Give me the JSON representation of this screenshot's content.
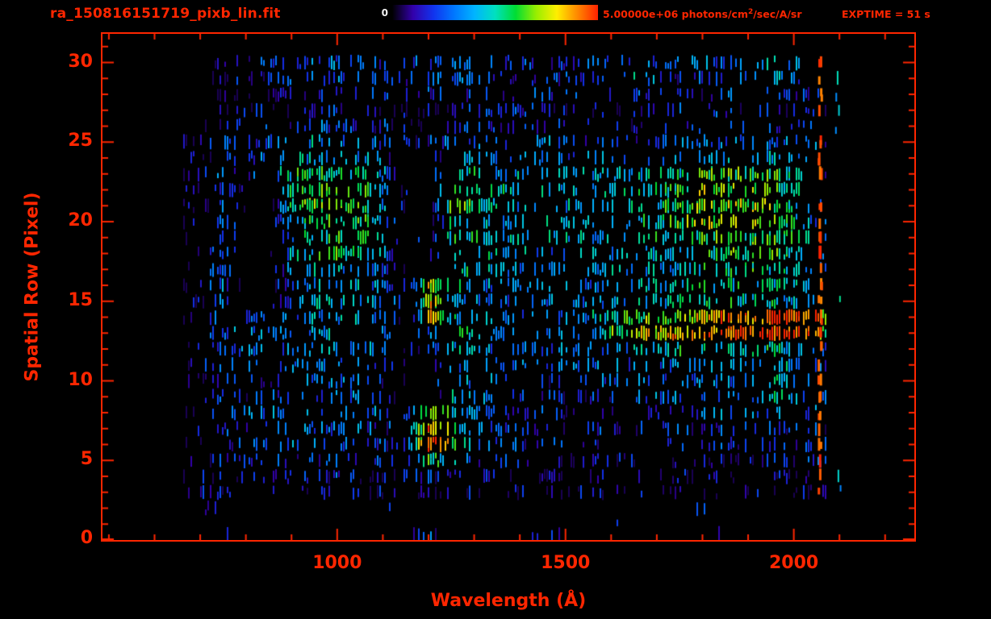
{
  "colors": {
    "accent": "#ff2600",
    "background": "#000000",
    "colorbar_min_text": "#f2f2f2"
  },
  "header": {
    "filename": "ra_150816151719_pixb_lin.fit",
    "colorbar_min_label": "0",
    "flux_prefix": "5.00000e+06 photons/cm",
    "flux_sup": "2",
    "flux_suffix": "/sec/A/sr",
    "exptime_label": "EXPTIME = 51 s"
  },
  "chart_data": {
    "type": "heatmap",
    "title": "ra_150816151719_pixb_lin.fit",
    "xlabel": "Wavelength (Å)",
    "ylabel": "Spatial Row (Pixel)",
    "xlim": [
      486,
      2264
    ],
    "ylim": [
      0,
      31.8
    ],
    "x_major_ticks": [
      1000,
      1500,
      2000
    ],
    "x_minor_step": 100,
    "y_major_ticks": [
      0,
      5,
      10,
      15,
      20,
      25,
      30
    ],
    "y_minor_step": 1,
    "colorbar": {
      "min": 0,
      "max": 5000000,
      "label": "photons/cm²/sec/A/sr"
    },
    "exposure_time_s": 51,
    "wavelength_bins_start": 650,
    "wavelength_bin_step": 50,
    "intensity_scale_max": 10,
    "colormap_stops": [
      "#000000",
      "#3300aa",
      "#1133ee",
      "#0077ff",
      "#00b4ff",
      "#00e0c0",
      "#00dd33",
      "#99ee00",
      "#ffee00",
      "#ff8800",
      "#ff2200"
    ],
    "noise_seed": 42,
    "features": {
      "red_edge_column_wavelength": 2057,
      "bright_streak_row": 13.5,
      "bright_blob": {
        "wavelength": 1210,
        "rows": [
          5,
          8
        ]
      },
      "dark_gap_wavelength_range": [
        1150,
        1220
      ]
    },
    "intensity_grid": [
      [
        0,
        0,
        0,
        0,
        0,
        0,
        0,
        0,
        0,
        0,
        0,
        3,
        0,
        0,
        0,
        0,
        2,
        0,
        0,
        0,
        0,
        0,
        0,
        0,
        0,
        0,
        0,
        0,
        0,
        0,
        0,
        0
      ],
      [
        0,
        0,
        0,
        0,
        0,
        0,
        0,
        0,
        0,
        0,
        0,
        0,
        0,
        0,
        0,
        0,
        0,
        0,
        0,
        0,
        0,
        0,
        0,
        0,
        0,
        0,
        0,
        0,
        0,
        0,
        0,
        0
      ],
      [
        0,
        0,
        0,
        0,
        0,
        0,
        0,
        0,
        0,
        0,
        0,
        0,
        0,
        0,
        0,
        0,
        0,
        0,
        0,
        0,
        0,
        0,
        0,
        0,
        0,
        0,
        0,
        0,
        0,
        0,
        0,
        0
      ],
      [
        0,
        1,
        1,
        1,
        1,
        1,
        1,
        1,
        1,
        1,
        1,
        1,
        1,
        1,
        1,
        1,
        1,
        1,
        1,
        1,
        1,
        1,
        1,
        1,
        1,
        1,
        1,
        1,
        2,
        0,
        0,
        0
      ],
      [
        0,
        1,
        1,
        1,
        2,
        2,
        2,
        2,
        1,
        1,
        1,
        2,
        1,
        1,
        1,
        1,
        1,
        1,
        1,
        1,
        1,
        1,
        1,
        1,
        1,
        1,
        1,
        1,
        2,
        0,
        0,
        0
      ],
      [
        0,
        1,
        2,
        2,
        2,
        2,
        2,
        2,
        2,
        2,
        2,
        6,
        4,
        2,
        2,
        1,
        1,
        1,
        1,
        1,
        1,
        1,
        1,
        1,
        1,
        1,
        2,
        2,
        3,
        0,
        0,
        0
      ],
      [
        0,
        1,
        2,
        2,
        2,
        3,
        3,
        3,
        3,
        2,
        2,
        10,
        7,
        3,
        2,
        2,
        2,
        2,
        2,
        2,
        2,
        2,
        2,
        2,
        2,
        2,
        2,
        2,
        3,
        0,
        0,
        0
      ],
      [
        0,
        1,
        2,
        2,
        2,
        3,
        3,
        3,
        3,
        2,
        2,
        9,
        6,
        3,
        2,
        2,
        2,
        2,
        2,
        2,
        2,
        2,
        2,
        2,
        2,
        2,
        2,
        2,
        3,
        0,
        0,
        0
      ],
      [
        0,
        1,
        2,
        3,
        3,
        3,
        3,
        3,
        3,
        3,
        2,
        7,
        5,
        3,
        3,
        2,
        2,
        2,
        2,
        2,
        2,
        2,
        2,
        3,
        3,
        3,
        3,
        3,
        3,
        0,
        0,
        0
      ],
      [
        0,
        1,
        2,
        2,
        2,
        2,
        3,
        3,
        3,
        2,
        0,
        0,
        4,
        4,
        3,
        2,
        2,
        2,
        2,
        2,
        3,
        3,
        3,
        3,
        3,
        3,
        5,
        4,
        3,
        0,
        0,
        0
      ],
      [
        0,
        1,
        2,
        2,
        2,
        3,
        3,
        3,
        3,
        2,
        0,
        0,
        4,
        3,
        3,
        2,
        2,
        2,
        2,
        3,
        3,
        3,
        3,
        3,
        3,
        4,
        5,
        4,
        3,
        0,
        0,
        0
      ],
      [
        0,
        1,
        2,
        3,
        3,
        3,
        3,
        3,
        3,
        3,
        0,
        0,
        4,
        3,
        3,
        3,
        3,
        3,
        3,
        3,
        3,
        3,
        3,
        3,
        4,
        4,
        5,
        4,
        3,
        0,
        0,
        0
      ],
      [
        0,
        1,
        2,
        3,
        3,
        3,
        4,
        4,
        4,
        3,
        0,
        2,
        4,
        4,
        3,
        3,
        3,
        3,
        3,
        3,
        4,
        5,
        5,
        5,
        5,
        5,
        5,
        4,
        3,
        0,
        0,
        0
      ],
      [
        0,
        1,
        3,
        3,
        3,
        3,
        4,
        4,
        4,
        3,
        0,
        3,
        5,
        5,
        4,
        3,
        3,
        3,
        4,
        6,
        7,
        8,
        8,
        9,
        9,
        10,
        10,
        10,
        10,
        0,
        0,
        0
      ],
      [
        0,
        1,
        3,
        3,
        3,
        3,
        4,
        4,
        4,
        3,
        0,
        8,
        5,
        4,
        4,
        3,
        3,
        3,
        4,
        5,
        6,
        7,
        7,
        8,
        9,
        9,
        10,
        10,
        10,
        0,
        0,
        0
      ],
      [
        0,
        1,
        3,
        0,
        0,
        3,
        4,
        4,
        4,
        3,
        2,
        8,
        4,
        4,
        3,
        3,
        3,
        3,
        3,
        4,
        4,
        4,
        5,
        5,
        5,
        5,
        5,
        4,
        3,
        0,
        0,
        0
      ],
      [
        0,
        1,
        3,
        0,
        0,
        3,
        4,
        4,
        4,
        3,
        0,
        8,
        5,
        4,
        3,
        3,
        3,
        3,
        3,
        4,
        4,
        4,
        4,
        5,
        5,
        5,
        5,
        4,
        3,
        0,
        0,
        0
      ],
      [
        0,
        1,
        3,
        0,
        0,
        4,
        4,
        4,
        4,
        3,
        0,
        0,
        5,
        5,
        4,
        3,
        3,
        3,
        3,
        4,
        4,
        4,
        4,
        5,
        5,
        6,
        5,
        4,
        3,
        0,
        0,
        0
      ],
      [
        0,
        1,
        3,
        0,
        0,
        4,
        5,
        6,
        5,
        4,
        0,
        0,
        5,
        5,
        4,
        4,
        3,
        3,
        4,
        4,
        4,
        4,
        5,
        5,
        6,
        6,
        6,
        5,
        3,
        0,
        0,
        0
      ],
      [
        0,
        1,
        3,
        0,
        0,
        4,
        5,
        6,
        6,
        4,
        0,
        0,
        5,
        5,
        4,
        4,
        4,
        4,
        4,
        4,
        4,
        5,
        5,
        6,
        6,
        6,
        6,
        5,
        3,
        0,
        0,
        0
      ],
      [
        0,
        1,
        3,
        0,
        0,
        4,
        6,
        6,
        6,
        4,
        0,
        0,
        5,
        5,
        4,
        4,
        4,
        4,
        4,
        4,
        5,
        5,
        6,
        7,
        7,
        7,
        7,
        5,
        3,
        0,
        0,
        0
      ],
      [
        0,
        1,
        3,
        0,
        0,
        6,
        7,
        7,
        6,
        4,
        0,
        0,
        6,
        6,
        4,
        4,
        4,
        4,
        4,
        4,
        5,
        5,
        6,
        7,
        7,
        7,
        7,
        5,
        3,
        0,
        0,
        0
      ],
      [
        0,
        1,
        3,
        0,
        0,
        6,
        7,
        6,
        6,
        4,
        0,
        0,
        6,
        6,
        5,
        4,
        4,
        4,
        4,
        4,
        5,
        5,
        6,
        7,
        7,
        7,
        6,
        5,
        3,
        0,
        0,
        0
      ],
      [
        0,
        1,
        3,
        2,
        3,
        5,
        6,
        5,
        5,
        4,
        0,
        0,
        5,
        5,
        4,
        4,
        4,
        4,
        4,
        4,
        4,
        5,
        5,
        6,
        6,
        6,
        6,
        5,
        3,
        0,
        0,
        0
      ],
      [
        0,
        1,
        2,
        2,
        4,
        4,
        4,
        4,
        4,
        3,
        0,
        0,
        4,
        4,
        3,
        3,
        3,
        3,
        3,
        3,
        3,
        3,
        4,
        4,
        4,
        4,
        4,
        4,
        3,
        0,
        0,
        0
      ],
      [
        0,
        1,
        2,
        2,
        3,
        4,
        4,
        3,
        3,
        2,
        2,
        2,
        3,
        3,
        3,
        3,
        3,
        3,
        2,
        2,
        2,
        2,
        3,
        3,
        3,
        3,
        3,
        3,
        3,
        0,
        0,
        0
      ],
      [
        0,
        0,
        1,
        1,
        2,
        2,
        3,
        2,
        2,
        2,
        1,
        1,
        2,
        2,
        2,
        2,
        2,
        2,
        1,
        1,
        1,
        2,
        2,
        2,
        2,
        2,
        2,
        2,
        2,
        0,
        0,
        0
      ],
      [
        0,
        0,
        1,
        1,
        1,
        1,
        2,
        2,
        2,
        1,
        1,
        1,
        2,
        2,
        2,
        2,
        2,
        1,
        1,
        1,
        1,
        1,
        2,
        2,
        2,
        2,
        2,
        2,
        2,
        0,
        0,
        0
      ],
      [
        0,
        0,
        1,
        1,
        2,
        2,
        2,
        2,
        2,
        2,
        1,
        2,
        2,
        2,
        2,
        2,
        2,
        2,
        2,
        2,
        3,
        2,
        2,
        2,
        3,
        2,
        2,
        2,
        2,
        0,
        0,
        0
      ],
      [
        0,
        0,
        1,
        2,
        2,
        3,
        3,
        3,
        3,
        2,
        2,
        2,
        3,
        3,
        2,
        2,
        2,
        2,
        2,
        2,
        4,
        3,
        2,
        3,
        3,
        3,
        4,
        3,
        2,
        1,
        0,
        0
      ],
      [
        0,
        0,
        1,
        2,
        2,
        3,
        3,
        3,
        3,
        2,
        2,
        3,
        3,
        3,
        2,
        2,
        2,
        2,
        2,
        2,
        3,
        3,
        3,
        3,
        3,
        3,
        4,
        3,
        2,
        1,
        0,
        0
      ]
    ]
  }
}
